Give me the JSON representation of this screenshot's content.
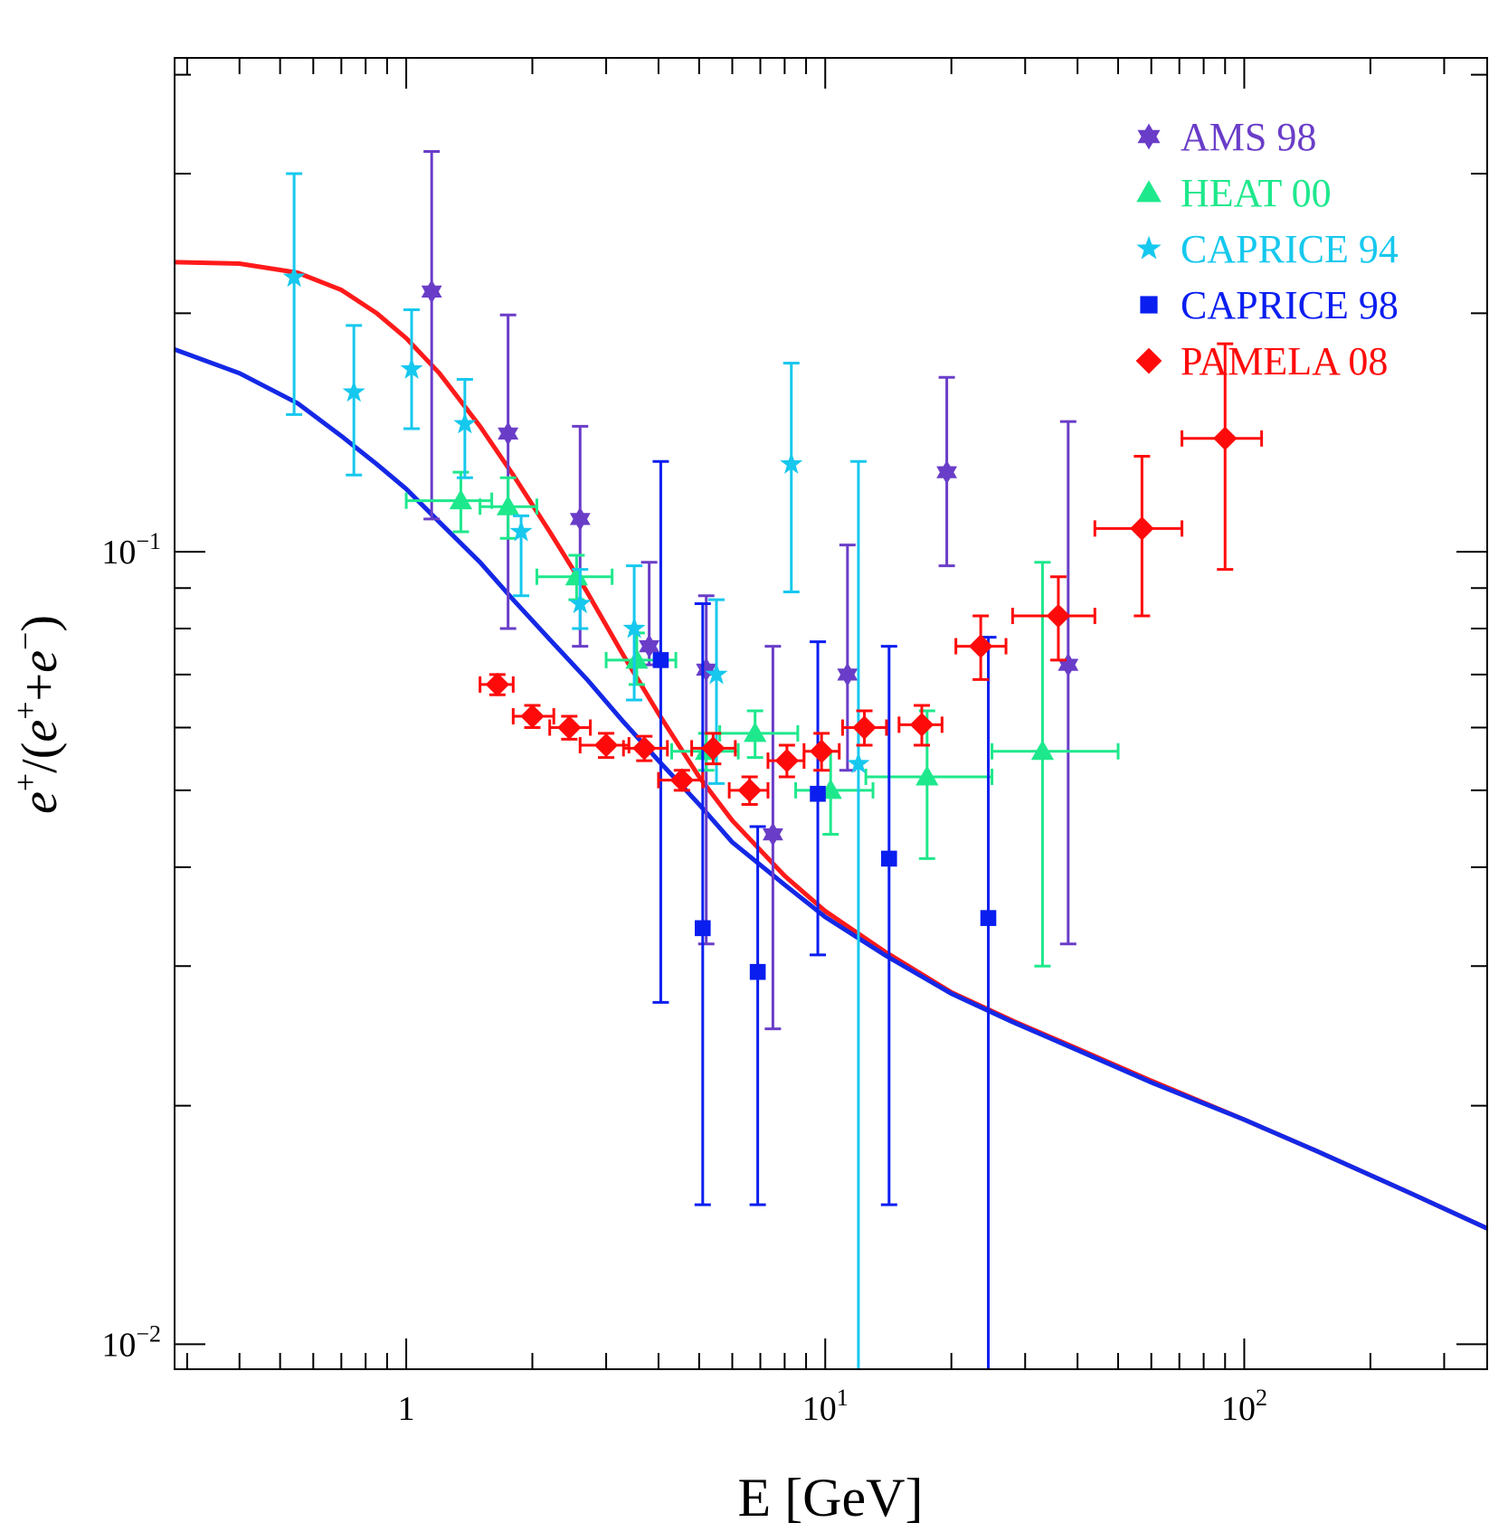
{
  "chart_data": {
    "type": "scatter",
    "title": "",
    "xlabel": "E [GeV]",
    "ylabel": "e+/(e+ + e-)",
    "xscale": "log",
    "yscale": "log",
    "xlim": [
      0.28,
      380
    ],
    "ylim": [
      0.0093,
      0.42
    ],
    "x_tick_labels": [
      {
        "value": 1,
        "base": "1",
        "exp": ""
      },
      {
        "value": 10,
        "base": "10",
        "exp": "1"
      },
      {
        "value": 100,
        "base": "10",
        "exp": "2"
      }
    ],
    "y_tick_labels": [
      {
        "value": 0.01,
        "base": "10",
        "exp": "−2"
      },
      {
        "value": 0.1,
        "base": "10",
        "exp": "−1"
      }
    ],
    "legend": {
      "position": "top-right"
    },
    "series": [
      {
        "name": "AMS 98",
        "marker": "hexstar",
        "color": "#6a3dc8",
        "points": [
          {
            "x": 1.15,
            "y": 0.213,
            "ylo": 0.11,
            "yhi": 0.32
          },
          {
            "x": 1.75,
            "y": 0.141,
            "ylo": 0.08,
            "yhi": 0.199
          },
          {
            "x": 2.6,
            "y": 0.11,
            "ylo": 0.076,
            "yhi": 0.144
          },
          {
            "x": 3.8,
            "y": 0.076,
            "ylo": 0.072,
            "yhi": 0.097
          },
          {
            "x": 5.2,
            "y": 0.071,
            "ylo": 0.032,
            "yhi": 0.088
          },
          {
            "x": 7.5,
            "y": 0.044,
            "ylo": 0.025,
            "yhi": 0.076
          },
          {
            "x": 11.3,
            "y": 0.07,
            "ylo": 0.053,
            "yhi": 0.102
          },
          {
            "x": 19.5,
            "y": 0.126,
            "ylo": 0.096,
            "yhi": 0.166
          },
          {
            "x": 38,
            "y": 0.072,
            "ylo": 0.032,
            "yhi": 0.146
          }
        ]
      },
      {
        "name": "HEAT 00",
        "marker": "triangle",
        "color": "#1ee88c",
        "points": [
          {
            "x": 1.35,
            "y": 0.116,
            "ylo": 0.106,
            "yhi": 0.126,
            "xlo": 1.0,
            "xhi": 1.6
          },
          {
            "x": 1.75,
            "y": 0.114,
            "ylo": 0.104,
            "yhi": 0.124,
            "xlo": 1.5,
            "xhi": 2.05
          },
          {
            "x": 2.55,
            "y": 0.093,
            "ylo": 0.087,
            "yhi": 0.099,
            "xlo": 2.05,
            "xhi": 3.1
          },
          {
            "x": 3.55,
            "y": 0.073,
            "ylo": 0.068,
            "yhi": 0.079,
            "xlo": 3.0,
            "xhi": 4.4
          },
          {
            "x": 5.2,
            "y": 0.056,
            "ylo": 0.053,
            "yhi": 0.059,
            "xlo": 4.3,
            "xhi": 6.2
          },
          {
            "x": 6.8,
            "y": 0.059,
            "ylo": 0.055,
            "yhi": 0.063,
            "xlo": 5.6,
            "xhi": 8.6
          },
          {
            "x": 10.3,
            "y": 0.05,
            "ylo": 0.044,
            "yhi": 0.056,
            "xlo": 8.5,
            "xhi": 13.0
          },
          {
            "x": 17.5,
            "y": 0.052,
            "ylo": 0.041,
            "yhi": 0.063,
            "xlo": 12.5,
            "xhi": 25.0
          },
          {
            "x": 33,
            "y": 0.056,
            "ylo": 0.03,
            "yhi": 0.097,
            "xlo": 25,
            "xhi": 50
          }
        ]
      },
      {
        "name": "CAPRICE 94",
        "marker": "star",
        "color": "#16c8ee",
        "points": [
          {
            "x": 0.54,
            "y": 0.222,
            "ylo": 0.149,
            "yhi": 0.3
          },
          {
            "x": 0.75,
            "y": 0.159,
            "ylo": 0.125,
            "yhi": 0.193
          },
          {
            "x": 1.03,
            "y": 0.17,
            "ylo": 0.143,
            "yhi": 0.202
          },
          {
            "x": 1.38,
            "y": 0.145,
            "ylo": 0.124,
            "yhi": 0.165
          },
          {
            "x": 1.88,
            "y": 0.106,
            "ylo": 0.088,
            "yhi": 0.111
          },
          {
            "x": 2.6,
            "y": 0.086,
            "ylo": 0.08,
            "yhi": 0.095
          },
          {
            "x": 3.5,
            "y": 0.08,
            "ylo": 0.065,
            "yhi": 0.096
          },
          {
            "x": 5.5,
            "y": 0.07,
            "ylo": 0.051,
            "yhi": 0.087
          },
          {
            "x": 8.3,
            "y": 0.129,
            "ylo": 0.089,
            "yhi": 0.173
          },
          {
            "x": 12.0,
            "y": 0.054,
            "ylo": 0.0001,
            "yhi": 0.13
          }
        ]
      },
      {
        "name": "CAPRICE 98",
        "marker": "square",
        "color": "#0a1ef0",
        "points": [
          {
            "x": 4.05,
            "y": 0.073,
            "ylo": 0.027,
            "yhi": 0.13
          },
          {
            "x": 5.1,
            "y": 0.0335,
            "ylo": 0.015,
            "yhi": 0.086
          },
          {
            "x": 6.9,
            "y": 0.0295,
            "ylo": 0.015,
            "yhi": 0.045
          },
          {
            "x": 9.6,
            "y": 0.0495,
            "ylo": 0.031,
            "yhi": 0.077
          },
          {
            "x": 14.2,
            "y": 0.041,
            "ylo": 0.015,
            "yhi": 0.076
          },
          {
            "x": 24.5,
            "y": 0.0345,
            "ylo": 0.0001,
            "yhi": 0.078
          }
        ]
      },
      {
        "name": "PAMELA 08",
        "marker": "diamond",
        "color": "#ff0a0a",
        "points": [
          {
            "x": 1.65,
            "y": 0.068,
            "ylo": 0.066,
            "yhi": 0.07,
            "xlo": 1.5,
            "xhi": 1.8
          },
          {
            "x": 2.0,
            "y": 0.062,
            "ylo": 0.06,
            "yhi": 0.064,
            "xlo": 1.8,
            "xhi": 2.25
          },
          {
            "x": 2.45,
            "y": 0.06,
            "ylo": 0.058,
            "yhi": 0.062,
            "xlo": 2.2,
            "xhi": 2.75
          },
          {
            "x": 3.0,
            "y": 0.057,
            "ylo": 0.055,
            "yhi": 0.059,
            "xlo": 2.6,
            "xhi": 3.4
          },
          {
            "x": 3.7,
            "y": 0.0565,
            "ylo": 0.0545,
            "yhi": 0.0585,
            "xlo": 3.3,
            "xhi": 4.2
          },
          {
            "x": 4.55,
            "y": 0.0515,
            "ylo": 0.05,
            "yhi": 0.053,
            "xlo": 4.0,
            "xhi": 5.1
          },
          {
            "x": 5.4,
            "y": 0.0565,
            "ylo": 0.054,
            "yhi": 0.059,
            "xlo": 4.8,
            "xhi": 6.1
          },
          {
            "x": 6.6,
            "y": 0.05,
            "ylo": 0.048,
            "yhi": 0.052,
            "xlo": 5.9,
            "xhi": 7.3
          },
          {
            "x": 8.1,
            "y": 0.0545,
            "ylo": 0.052,
            "yhi": 0.057,
            "xlo": 7.3,
            "xhi": 8.9
          },
          {
            "x": 9.8,
            "y": 0.056,
            "ylo": 0.053,
            "yhi": 0.059,
            "xlo": 8.9,
            "xhi": 10.8
          },
          {
            "x": 12.4,
            "y": 0.06,
            "ylo": 0.057,
            "yhi": 0.063,
            "xlo": 11.0,
            "xhi": 14.0
          },
          {
            "x": 17.0,
            "y": 0.0605,
            "ylo": 0.057,
            "yhi": 0.064,
            "xlo": 15.0,
            "xhi": 19.0
          },
          {
            "x": 23.5,
            "y": 0.076,
            "ylo": 0.069,
            "yhi": 0.083,
            "xlo": 20.5,
            "xhi": 27.0
          },
          {
            "x": 36,
            "y": 0.083,
            "ylo": 0.073,
            "yhi": 0.093,
            "xlo": 28,
            "xhi": 44
          },
          {
            "x": 57,
            "y": 0.107,
            "ylo": 0.083,
            "yhi": 0.132,
            "xlo": 44,
            "xhi": 71
          },
          {
            "x": 90,
            "y": 0.139,
            "ylo": 0.095,
            "yhi": 0.183,
            "xlo": 71,
            "xhi": 110
          }
        ]
      }
    ],
    "curves": [
      {
        "color": "#ff1a1a",
        "x": [
          0.28,
          0.4,
          0.55,
          0.7,
          0.85,
          1.0,
          1.2,
          1.5,
          1.8,
          2.2,
          2.7,
          3.3,
          4.0,
          5.0,
          6.0,
          8.0,
          10,
          14,
          20,
          28,
          40,
          60,
          100,
          150,
          250,
          380
        ],
        "y": [
          0.232,
          0.231,
          0.225,
          0.214,
          0.2,
          0.186,
          0.168,
          0.144,
          0.125,
          0.106,
          0.089,
          0.074,
          0.0625,
          0.052,
          0.0458,
          0.039,
          0.0352,
          0.0312,
          0.0278,
          0.0256,
          0.0236,
          0.0215,
          0.0192,
          0.0175,
          0.0155,
          0.014
        ]
      },
      {
        "color": "#1428e6",
        "x": [
          0.28,
          0.4,
          0.55,
          0.7,
          0.85,
          1.0,
          1.2,
          1.5,
          1.8,
          2.2,
          2.7,
          3.3,
          4.0,
          5.0,
          6.0,
          8.0,
          10,
          14,
          20,
          28,
          40,
          60,
          100,
          150,
          250,
          380
        ],
        "y": [
          0.18,
          0.168,
          0.154,
          0.14,
          0.129,
          0.12,
          0.109,
          0.097,
          0.087,
          0.0775,
          0.069,
          0.061,
          0.0545,
          0.048,
          0.043,
          0.038,
          0.0346,
          0.0309,
          0.0277,
          0.0255,
          0.0235,
          0.0214,
          0.0192,
          0.0175,
          0.0155,
          0.014
        ]
      }
    ]
  }
}
